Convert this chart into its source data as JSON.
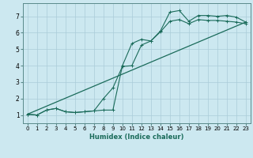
{
  "title": "",
  "xlabel": "Humidex (Indice chaleur)",
  "bg_color": "#cce8f0",
  "line_color": "#1a6b5a",
  "grid_color": "#aaccd8",
  "xlim": [
    -0.5,
    23.5
  ],
  "ylim": [
    0.5,
    7.8
  ],
  "xticks": [
    0,
    1,
    2,
    3,
    4,
    5,
    6,
    7,
    8,
    9,
    10,
    11,
    12,
    13,
    14,
    15,
    16,
    17,
    18,
    19,
    20,
    21,
    22,
    23
  ],
  "yticks": [
    1,
    2,
    3,
    4,
    5,
    6,
    7
  ],
  "curve1_x": [
    0,
    1,
    2,
    3,
    4,
    5,
    6,
    7,
    8,
    9,
    10,
    11,
    12,
    13,
    14,
    15,
    16,
    17,
    18,
    19,
    20,
    21,
    22,
    23
  ],
  "curve1_y": [
    1.05,
    1.0,
    1.3,
    1.4,
    1.2,
    1.15,
    1.2,
    1.25,
    1.3,
    1.3,
    4.0,
    5.35,
    5.6,
    5.5,
    6.1,
    7.25,
    7.35,
    6.7,
    7.05,
    7.05,
    7.0,
    7.05,
    6.95,
    6.65
  ],
  "curve2_x": [
    0,
    1,
    2,
    3,
    4,
    5,
    6,
    7,
    8,
    9,
    10,
    11,
    12,
    13,
    14,
    15,
    16,
    17,
    18,
    19,
    20,
    21,
    22,
    23
  ],
  "curve2_y": [
    1.05,
    1.0,
    1.3,
    1.4,
    1.2,
    1.15,
    1.2,
    1.25,
    2.0,
    2.65,
    3.95,
    4.0,
    5.25,
    5.5,
    6.05,
    6.7,
    6.8,
    6.55,
    6.8,
    6.75,
    6.75,
    6.7,
    6.65,
    6.55
  ],
  "trend_x": [
    0,
    23
  ],
  "trend_y": [
    1.05,
    6.65
  ]
}
